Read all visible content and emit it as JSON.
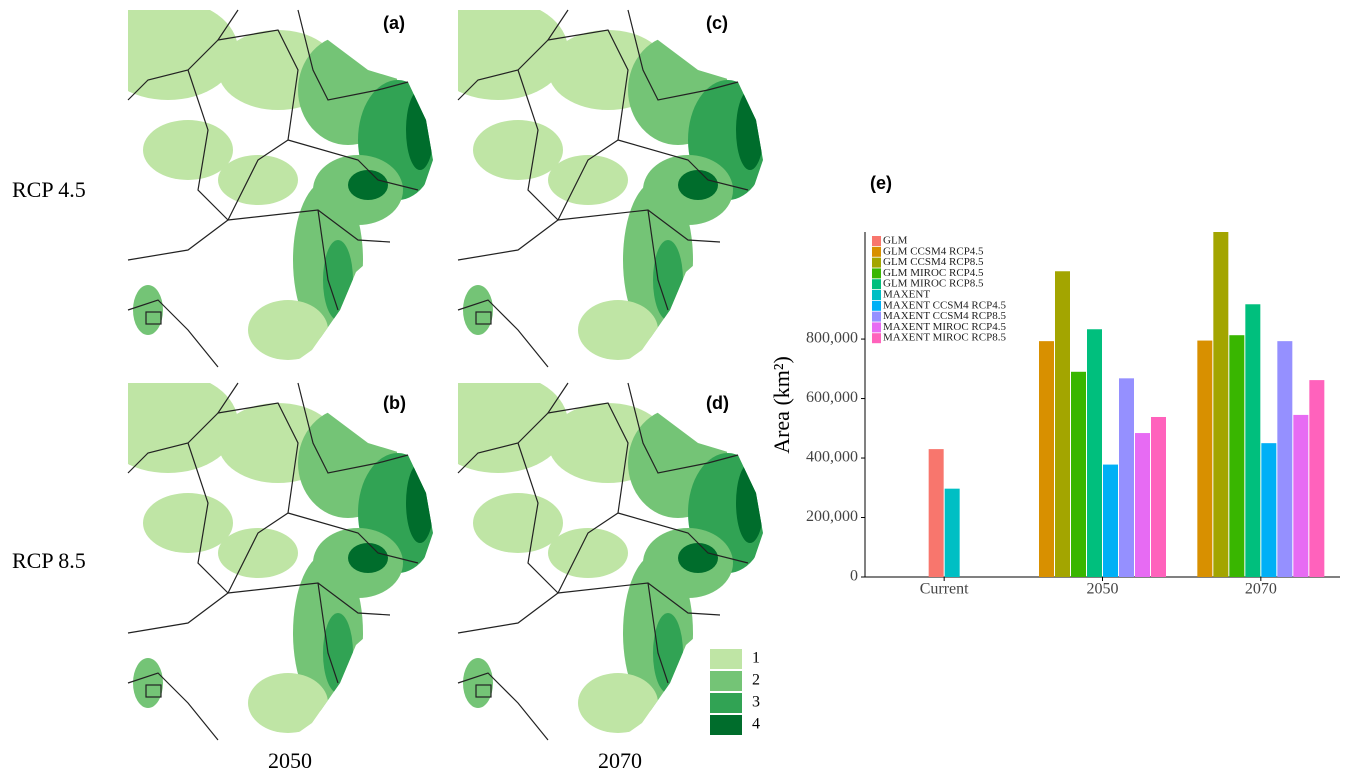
{
  "figure": {
    "row_labels": [
      "RCP 4.5",
      "RCP 8.5"
    ],
    "column_labels": [
      "2050",
      "2070"
    ],
    "panel_labels": [
      "(a)",
      "(b)",
      "(c)",
      "(d)"
    ],
    "map_legend": [
      "1",
      "2",
      "3",
      "4"
    ]
  },
  "chart_data": {
    "type": "bar",
    "title": "(e)",
    "y_label": "Area (km²)",
    "categories": [
      "Current",
      "2050",
      "2070"
    ],
    "series": [
      {
        "name": "GLM",
        "color": "#F8766D",
        "values": [
          430000,
          null,
          null
        ]
      },
      {
        "name": "GLM CCSM4 RCP4.5",
        "color": "#D89000",
        "values": [
          null,
          793000,
          795000
        ]
      },
      {
        "name": "GLM CCSM4 RCP8.5",
        "color": "#A3A500",
        "values": [
          null,
          1028000,
          1160000
        ]
      },
      {
        "name": "GLM MIROC RCP4.5",
        "color": "#39B600",
        "values": [
          null,
          690000,
          813000
        ]
      },
      {
        "name": "GLM MIROC RCP8.5",
        "color": "#00BF7D",
        "values": [
          null,
          833000,
          917000
        ]
      },
      {
        "name": "MAXENT",
        "color": "#00BFC4",
        "values": [
          297000,
          null,
          null
        ]
      },
      {
        "name": "MAXENT CCSM4 RCP4.5",
        "color": "#00B0F6",
        "values": [
          null,
          378000,
          450000
        ]
      },
      {
        "name": "MAXENT CCSM4 RCP8.5",
        "color": "#9590FF",
        "values": [
          null,
          668000,
          793000
        ]
      },
      {
        "name": "MAXENT MIROC RCP4.5",
        "color": "#E76BF3",
        "values": [
          null,
          484000,
          545000
        ]
      },
      {
        "name": "MAXENT MIROC RCP8.5",
        "color": "#FF62BC",
        "values": [
          null,
          538000,
          662000
        ]
      }
    ],
    "ylim": [
      0,
      1160000
    ],
    "yticks": [
      0,
      {
        "value": 200000,
        "label": "200,000"
      },
      {
        "value": 400000,
        "label": "400,000"
      },
      {
        "value": 600000,
        "label": "600,000"
      },
      {
        "value": 800000,
        "label": "800,000"
      }
    ],
    "legend": "top-left"
  }
}
